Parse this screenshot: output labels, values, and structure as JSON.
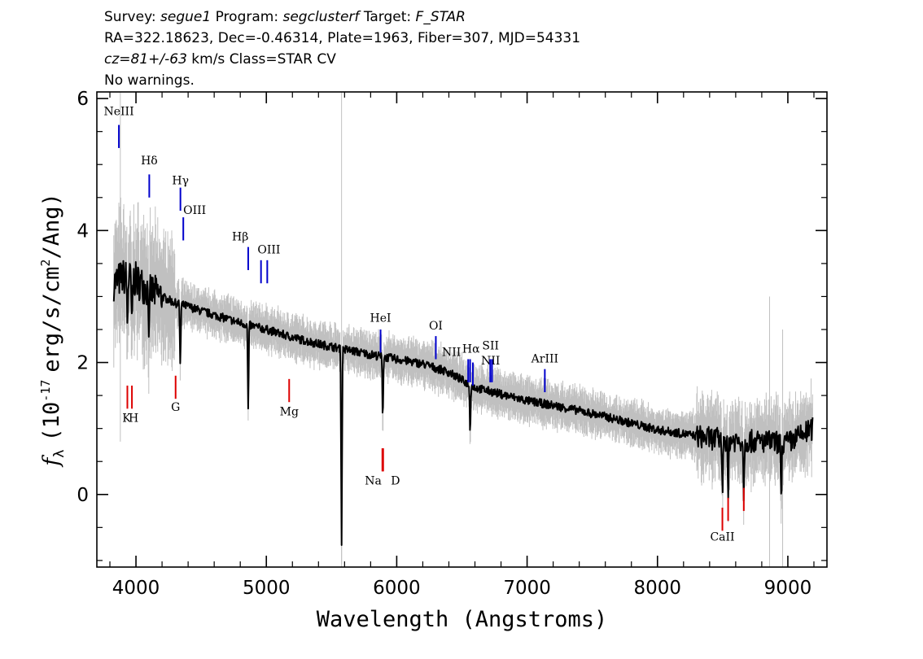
{
  "header": {
    "line1": {
      "survey_key": "Survey:",
      "survey": "segue1",
      "program_key": "Program:",
      "program": "segclusterf",
      "target_key": "Target:",
      "target": "F_STAR"
    },
    "line2": "RA=322.18623, Dec=-0.46314, Plate=1963, Fiber=307, MJD=54331",
    "line3": {
      "cz": "cz=81+/-63",
      "rest": "km/s Class=STAR CV"
    },
    "line4": "No warnings."
  },
  "chart_data": {
    "type": "line",
    "xlabel": "Wavelength (Angstroms)",
    "ylabel_symbol": "f",
    "ylabel_subscript": "λ",
    "ylabel_units": "(10",
    "ylabel_exp": "-17",
    "ylabel_units2": "erg/s/cm",
    "ylabel_exp2": "2",
    "ylabel_units3": "/Ang)",
    "xlim": [
      3700,
      9300
    ],
    "ylim": [
      -1.1,
      6.1
    ],
    "x_ticks": [
      4000,
      5000,
      6000,
      7000,
      8000,
      9000
    ],
    "x_tick_labels": [
      "4000",
      "5000",
      "6000",
      "7000",
      "8000",
      "9000"
    ],
    "y_ticks": [
      0,
      2,
      4,
      6
    ],
    "y_tick_labels": [
      "0",
      "2",
      "4",
      "6"
    ],
    "colors": {
      "spectrum": "#000000",
      "error": "#c0c0c0",
      "emission": "#0000cc",
      "absorption": "#dd0000"
    },
    "continuum": [
      [
        3830,
        3.2
      ],
      [
        3900,
        3.3
      ],
      [
        4000,
        3.25
      ],
      [
        4100,
        3.1
      ],
      [
        4200,
        3.0
      ],
      [
        4300,
        2.9
      ],
      [
        4400,
        2.85
      ],
      [
        4500,
        2.78
      ],
      [
        4600,
        2.72
      ],
      [
        4700,
        2.66
      ],
      [
        4800,
        2.6
      ],
      [
        5000,
        2.5
      ],
      [
        5200,
        2.38
      ],
      [
        5400,
        2.28
      ],
      [
        5600,
        2.2
      ],
      [
        5800,
        2.12
      ],
      [
        6000,
        2.05
      ],
      [
        6200,
        1.98
      ],
      [
        6400,
        1.85
      ],
      [
        6600,
        1.62
      ],
      [
        6800,
        1.52
      ],
      [
        7000,
        1.42
      ],
      [
        7200,
        1.35
      ],
      [
        7400,
        1.27
      ],
      [
        7600,
        1.18
      ],
      [
        7800,
        1.08
      ],
      [
        8000,
        0.98
      ],
      [
        8200,
        0.92
      ],
      [
        8400,
        0.85
      ],
      [
        8600,
        0.82
      ],
      [
        8800,
        0.8
      ],
      [
        9000,
        0.78
      ],
      [
        9190,
        1.0
      ]
    ],
    "features": [
      {
        "x": 3934,
        "depth": 0.7
      },
      {
        "x": 3969,
        "depth": 0.8
      },
      {
        "x": 4101,
        "depth": 0.7
      },
      {
        "x": 4340,
        "depth": 0.9
      },
      {
        "x": 4861,
        "depth": 1.3
      },
      {
        "x": 5577,
        "depth": 3.0
      },
      {
        "x": 5893,
        "depth": 0.9
      },
      {
        "x": 6563,
        "depth": 0.7
      },
      {
        "x": 8498,
        "depth": 0.8
      },
      {
        "x": 8542,
        "depth": 0.9
      },
      {
        "x": 8662,
        "depth": 0.8
      },
      {
        "x": 8950,
        "depth": 0.9
      }
    ],
    "emission_lines": [
      {
        "label": "NeIII",
        "x": 3869,
        "y1": 5.25,
        "y2": 5.6,
        "lx": 3869,
        "ly": 5.75
      },
      {
        "label": "Hδ",
        "x": 4102,
        "y1": 4.5,
        "y2": 4.85,
        "lx": 4102,
        "ly": 5.0
      },
      {
        "label": "Hγ",
        "x": 4341,
        "y1": 4.3,
        "y2": 4.65,
        "lx": 4341,
        "ly": 4.7
      },
      {
        "label": "OIII",
        "x": 4363,
        "y1": 3.85,
        "y2": 4.2,
        "lx": 4450,
        "ly": 4.25
      },
      {
        "label": "Hβ",
        "x": 4861,
        "y1": 3.4,
        "y2": 3.75,
        "lx": 4800,
        "ly": 3.85
      },
      {
        "label": "OIII",
        "x": 4959,
        "y1": 3.2,
        "y2": 3.55,
        "lx": 5020,
        "ly": 3.65
      },
      {
        "label": "",
        "x": 5007,
        "y1": 3.2,
        "y2": 3.55,
        "lx": 5007,
        "ly": 3.65
      },
      {
        "label": "HeI",
        "x": 5876,
        "y1": 2.15,
        "y2": 2.5,
        "lx": 5876,
        "ly": 2.62
      },
      {
        "label": "OI",
        "x": 6300,
        "y1": 2.05,
        "y2": 2.4,
        "lx": 6300,
        "ly": 2.5
      },
      {
        "label": "NII",
        "x": 6548,
        "y1": 1.7,
        "y2": 2.05,
        "lx": 6420,
        "ly": 2.1
      },
      {
        "label": "Hα",
        "x": 6563,
        "y1": 1.7,
        "y2": 2.05,
        "lx": 6570,
        "ly": 2.15
      },
      {
        "label": "NII",
        "x": 6584,
        "y1": 1.65,
        "y2": 2.0,
        "lx": 6720,
        "ly": 1.97
      },
      {
        "label": "SII",
        "x": 6717,
        "y1": 1.7,
        "y2": 2.05,
        "lx": 6720,
        "ly": 2.2
      },
      {
        "label": "",
        "x": 6731,
        "y1": 1.7,
        "y2": 2.05,
        "lx": 6731,
        "ly": 2.2
      },
      {
        "label": "ArIII",
        "x": 7136,
        "y1": 1.55,
        "y2": 1.9,
        "lx": 7136,
        "ly": 2.0
      }
    ],
    "absorption_lines": [
      {
        "label": "K",
        "x": 3934,
        "y1": 1.3,
        "y2": 1.65,
        "lx": 3928,
        "ly": 1.1
      },
      {
        "label": "H",
        "x": 3969,
        "y1": 1.3,
        "y2": 1.65,
        "lx": 3982,
        "ly": 1.1
      },
      {
        "label": "G",
        "x": 4304,
        "y1": 1.45,
        "y2": 1.8,
        "lx": 4304,
        "ly": 1.27
      },
      {
        "label": "Mg",
        "x": 5175,
        "y1": 1.4,
        "y2": 1.75,
        "lx": 5175,
        "ly": 1.2
      },
      {
        "label": "Na",
        "x": 5890,
        "y1": 0.35,
        "y2": 0.7,
        "lx": 5820,
        "ly": 0.15
      },
      {
        "label": "D",
        "x": 5896,
        "y1": 0.35,
        "y2": 0.7,
        "lx": 5990,
        "ly": 0.15
      },
      {
        "label": "CaII",
        "x": 8498,
        "y1": -0.55,
        "y2": -0.2,
        "lx": 8498,
        "ly": -0.7
      },
      {
        "label": "",
        "x": 8542,
        "y1": -0.4,
        "y2": -0.05,
        "lx": 8542,
        "ly": -0.7
      },
      {
        "label": "",
        "x": 8662,
        "y1": -0.25,
        "y2": 0.1,
        "lx": 8662,
        "ly": -0.7
      }
    ]
  }
}
